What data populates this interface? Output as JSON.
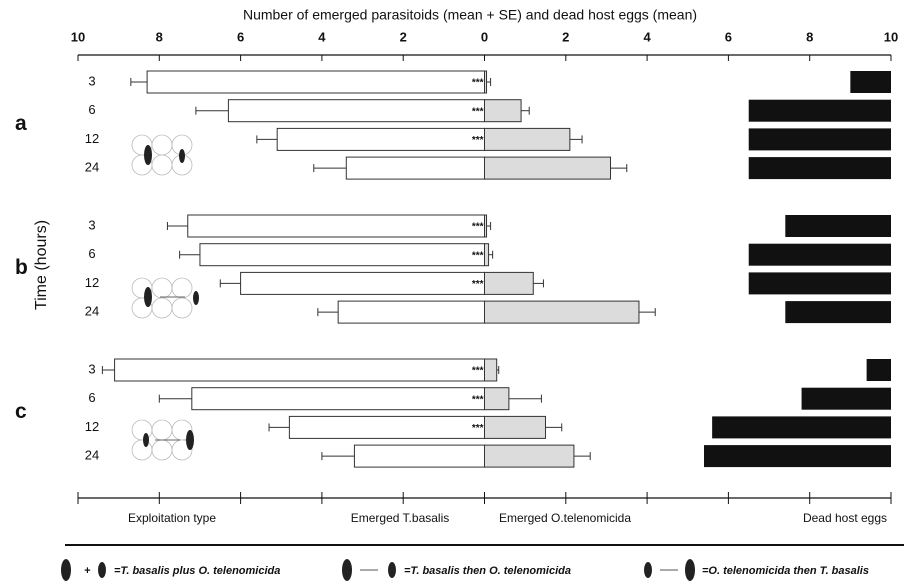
{
  "chart_data": {
    "type": "bar",
    "title": "Number of emerged parasitoids (mean + SE) and dead host eggs (mean)",
    "ylabel": "Time (hours)",
    "xlabel": "Exploitation type",
    "xlim": [
      -10,
      10
    ],
    "xticks": [
      {
        "value": -10,
        "label": "10"
      },
      {
        "value": -8,
        "label": "8"
      },
      {
        "value": -6,
        "label": "6"
      },
      {
        "value": -4,
        "label": "4"
      },
      {
        "value": -2,
        "label": "2"
      },
      0,
      2,
      4,
      6,
      8,
      10
    ],
    "groups": [
      "a",
      "b",
      "c"
    ],
    "categories": [
      "3",
      "6",
      "12",
      "24",
      "3",
      "6",
      "12",
      "24",
      "3",
      "6",
      "12",
      "24"
    ],
    "significance": [
      "***",
      "***",
      "***",
      null,
      "***",
      "***",
      "***",
      null,
      "***",
      "***",
      "***",
      null
    ],
    "series": [
      {
        "name": "Emerged T.basalis",
        "color": "#ffffff",
        "side": "left",
        "values": [
          8.3,
          6.3,
          5.1,
          3.4,
          7.3,
          7.0,
          6.0,
          3.6,
          9.1,
          7.2,
          4.8,
          3.2
        ],
        "errors": [
          0.4,
          0.8,
          0.5,
          0.8,
          0.5,
          0.5,
          0.5,
          0.5,
          0.3,
          0.8,
          0.5,
          0.8
        ]
      },
      {
        "name": "Emerged O.telenomicida",
        "color": "#dcdcdc",
        "side": "right",
        "values": [
          0.05,
          0.9,
          2.1,
          3.1,
          0.05,
          0.1,
          1.2,
          3.8,
          0.3,
          0.6,
          1.5,
          2.2
        ],
        "errors": [
          0.1,
          0.2,
          0.3,
          0.4,
          0.1,
          0.1,
          0.25,
          0.4,
          0.05,
          0.8,
          0.4,
          0.4
        ]
      },
      {
        "name": "Dead host eggs",
        "color": "#111111",
        "side": "end",
        "values": [
          1.0,
          3.5,
          3.5,
          3.5,
          2.6,
          3.5,
          3.5,
          2.6,
          0.6,
          2.2,
          4.4,
          4.6
        ]
      }
    ],
    "legend": [
      "=T. basalis plus O. telenomicida",
      "=T. basalis then O. telenomicida",
      "=O. telenomicida then T. basalis"
    ]
  }
}
